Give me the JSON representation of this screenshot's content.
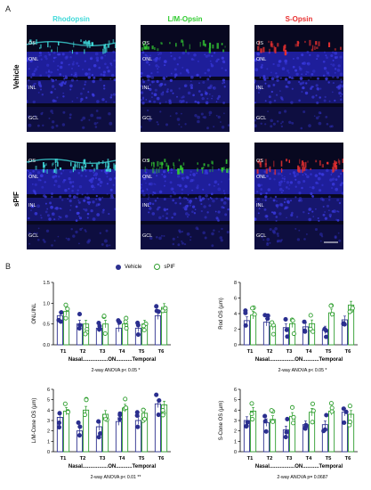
{
  "panels": {
    "a": "A",
    "b": "B"
  },
  "micrographs": {
    "columns": [
      "Rhodopsin",
      "L/M-Opsin",
      "S-Opsin"
    ],
    "column_colors": [
      "#3fd9d9",
      "#33cc33",
      "#e83030"
    ],
    "rows": [
      "Vehicle",
      "sPIF"
    ],
    "layer_labels": {
      "os": "OS",
      "onl": "ONL",
      "inl": "INL",
      "gcl": "GCL"
    }
  },
  "legend": {
    "vehicle": "Vehicle",
    "spif": "sPIF",
    "vehicle_color": "#2b2f8f",
    "spif_color": "#2e9e2e"
  },
  "chart_data": [
    {
      "type": "bar",
      "ylabel": "ONL/INL",
      "categories": [
        "T1",
        "T2",
        "T3",
        "T4",
        "T5",
        "T6"
      ],
      "ylim": [
        0,
        1.5
      ],
      "yticks": [
        "0.0",
        "0.5",
        "1.0",
        "1.5"
      ],
      "ytick_values": [
        0,
        0.5,
        1.0,
        1.5
      ],
      "series": [
        {
          "name": "Vehicle",
          "values": [
            0.7,
            0.5,
            0.4,
            0.4,
            0.4,
            0.7
          ]
        },
        {
          "name": "sPIF",
          "values": [
            0.8,
            0.5,
            0.5,
            0.5,
            0.5,
            0.9
          ]
        }
      ],
      "xnote": "Nasal.................ON...........Temporal",
      "stat": "2-way  ANOVA p< 0.05 *"
    },
    {
      "type": "bar",
      "ylabel": "Rod OS (µm)",
      "categories": [
        "T1",
        "T2",
        "T3",
        "T4",
        "T5",
        "T6"
      ],
      "ylim": [
        0,
        8
      ],
      "yticks": [
        "0",
        "2",
        "4",
        "6",
        "8"
      ],
      "ytick_values": [
        0,
        2,
        4,
        6,
        8
      ],
      "series": [
        {
          "name": "Vehicle",
          "values": [
            3.1,
            2.9,
            2.2,
            2.3,
            1.9,
            3.2
          ]
        },
        {
          "name": "sPIF",
          "values": [
            3.8,
            2.4,
            2.7,
            2.7,
            4.1,
            5.1
          ]
        }
      ],
      "xnote": "Nasal.................ON...........Temporal",
      "stat": "2-way  ANOVA p< 0.05 *"
    },
    {
      "type": "bar",
      "ylabel": "L/M-Cone OS (µm)",
      "categories": [
        "T1",
        "T2",
        "T3",
        "T4",
        "T5",
        "T6"
      ],
      "ylim": [
        0,
        6
      ],
      "yticks": [
        "0",
        "1",
        "2",
        "3",
        "4",
        "5",
        "6"
      ],
      "ytick_values": [
        0,
        1,
        2,
        3,
        4,
        5,
        6
      ],
      "series": [
        {
          "name": "Vehicle",
          "values": [
            3.3,
            2.0,
            2.4,
            2.9,
            3.0,
            4.6
          ]
        },
        {
          "name": "sPIF",
          "values": [
            3.9,
            4.0,
            3.6,
            4.2,
            3.7,
            4.5
          ]
        }
      ],
      "xnote": "Nasal.................ON...........Temporal",
      "stat": "2-way  ANOVA p< 0.01 **"
    },
    {
      "type": "bar",
      "ylabel": "S-Cone OS (µm)",
      "categories": [
        "T1",
        "T2",
        "T3",
        "T4",
        "T5",
        "T6"
      ],
      "ylim": [
        0,
        6
      ],
      "yticks": [
        "0",
        "1",
        "2",
        "3",
        "4",
        "5",
        "6"
      ],
      "ytick_values": [
        0,
        1,
        2,
        3,
        4,
        5,
        6
      ],
      "series": [
        {
          "name": "Vehicle",
          "values": [
            3.0,
            2.8,
            2.1,
            2.6,
            2.6,
            3.8
          ]
        },
        {
          "name": "sPIF",
          "values": [
            3.9,
            3.1,
            3.4,
            3.8,
            3.9,
            3.6
          ]
        }
      ],
      "xnote": "Nasal.................ON...........Temporal",
      "stat": "2-way  ANOVA p= 0.0687"
    }
  ]
}
